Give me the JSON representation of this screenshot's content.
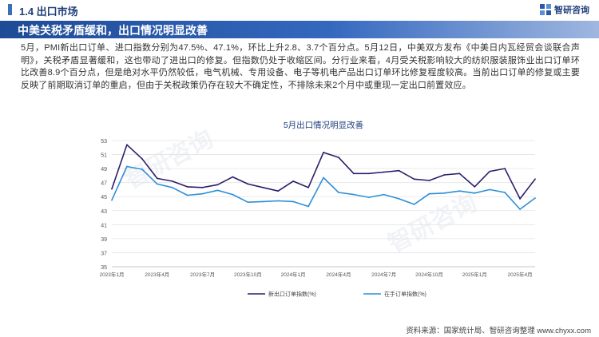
{
  "header": {
    "section_title": "1.4 出口市场",
    "brand_name": "智研咨询"
  },
  "headline": "中美关税矛盾缓和，出口情况明显改善",
  "paragraph": "5月，PMI新出口订单、进口指数分别为47.5%、47.1%，环比上升2.8、3.7个百分点。5月12日，中美双方发布《中美日内瓦经贸会谈联合声明》，关税矛盾显著缓和，这也带动了进出口的修复。但指数仍处于收缩区间。分行业来看，4月受关税影响较大的纺织服装服饰业出口订单环比改善8.9个百分点，但是绝对水平仍然较低，电气机械、专用设备、电子等机电产品出口订单环比修复程度较高。当前出口订单的修复或主要反映了前期取消订单的重启，但由于关税政策仍存在较大不确定性，不排除未来2个月中或重现一定出口前置效应。",
  "watermark_text": "智研咨询",
  "footer": {
    "source": "资料来源：国家统计局、智研咨询整理  www.chyxx.com"
  },
  "colors": {
    "new_export_orders": "#2b1f6b",
    "orders_in_hand": "#2f8fd6",
    "headline_bg": "#1e4b96",
    "section_title": "#1f3e7a"
  },
  "chart_data": {
    "type": "line",
    "title": "5月出口情况明显改善",
    "xlabel": "",
    "ylabel": "",
    "ylim": [
      35,
      53
    ],
    "yticks": [
      35,
      37,
      39,
      41,
      43,
      45,
      47,
      49,
      51,
      53
    ],
    "grid": "horizontal",
    "legend_position": "bottom",
    "x": [
      "2023年1月",
      "2023年2月",
      "2023年3月",
      "2023年4月",
      "2023年5月",
      "2023年6月",
      "2023年7月",
      "2023年8月",
      "2023年9月",
      "2023年10月",
      "2023年11月",
      "2023年12月",
      "2024年1月",
      "2024年2月",
      "2024年3月",
      "2024年4月",
      "2024年5月",
      "2024年6月",
      "2024年7月",
      "2024年8月",
      "2024年9月",
      "2024年10月",
      "2024年11月",
      "2024年12月",
      "2025年1月",
      "2025年2月",
      "2025年3月",
      "2025年4月",
      "2025年5月"
    ],
    "xtick_labels": [
      "2023年1月",
      "2023年4月",
      "2023年7月",
      "2023年10月",
      "2024年1月",
      "2024年4月",
      "2024年7月",
      "2024年10月",
      "2025年1月",
      "2025年4月"
    ],
    "xtick_indices": [
      0,
      3,
      6,
      9,
      12,
      15,
      18,
      21,
      24,
      27
    ],
    "series": [
      {
        "name": "新出口订单指数(%)",
        "color": "#2b1f6b",
        "values": [
          46.1,
          52.4,
          50.4,
          47.6,
          47.2,
          46.4,
          46.3,
          46.7,
          47.8,
          46.8,
          46.3,
          45.8,
          47.2,
          46.3,
          51.3,
          50.6,
          48.3,
          48.3,
          48.5,
          48.7,
          47.5,
          47.3,
          48.1,
          48.3,
          46.4,
          48.6,
          49.0,
          44.7,
          47.5
        ]
      },
      {
        "name": "在手订单指数(%)",
        "color": "#2f8fd6",
        "values": [
          44.5,
          49.3,
          48.9,
          46.8,
          46.3,
          45.2,
          45.4,
          45.9,
          45.3,
          44.2,
          44.3,
          44.4,
          44.3,
          43.6,
          47.7,
          45.6,
          45.3,
          44.9,
          45.3,
          44.7,
          43.9,
          45.4,
          45.5,
          45.8,
          45.5,
          46.0,
          45.6,
          43.2,
          44.8
        ]
      }
    ]
  }
}
